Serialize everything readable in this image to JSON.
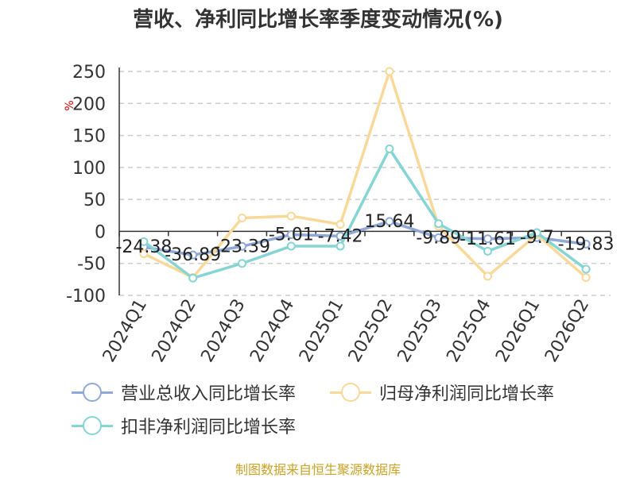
{
  "chart_data": {
    "type": "line",
    "title": "营收、净利同比增长率季度变动情况(%)",
    "ylabel": "%",
    "categories": [
      "2024Q1",
      "2024Q2",
      "2024Q3",
      "2024Q4",
      "2025Q1",
      "2025Q2",
      "2025Q3",
      "2025Q4",
      "2026Q1",
      "2026Q2"
    ],
    "ylim": [
      -100,
      250
    ],
    "yticks": [
      250,
      200,
      150,
      100,
      50,
      0,
      -50,
      -100
    ],
    "grid": true,
    "legend_position": "bottom",
    "series": [
      {
        "name": "营业总收入同比增长率",
        "color": "#8fa8d8",
        "values": [
          -24.38,
          -36.89,
          -23.39,
          -5.01,
          -7.42,
          15.64,
          -9.89,
          -11.61,
          -9.7,
          -19.83
        ],
        "labels": [
          "-24.38",
          "-36.89",
          "-23.39",
          "-5.01",
          "-7.42",
          "15.64",
          "-9.89",
          "-11.61",
          "-9.7",
          "-19.83"
        ]
      },
      {
        "name": "归母净利润同比增长率",
        "color": "#f8d999",
        "values": [
          -35,
          -72,
          21,
          24,
          11,
          250,
          8,
          -70,
          -5,
          -72
        ]
      },
      {
        "name": "扣非净利润同比增长率",
        "color": "#86d4d4",
        "values": [
          -16,
          -73,
          -50,
          -23,
          -23,
          129,
          12,
          -31,
          -2,
          -59
        ]
      }
    ]
  },
  "footer": {
    "source": "制图数据来自恒生聚源数据库"
  }
}
